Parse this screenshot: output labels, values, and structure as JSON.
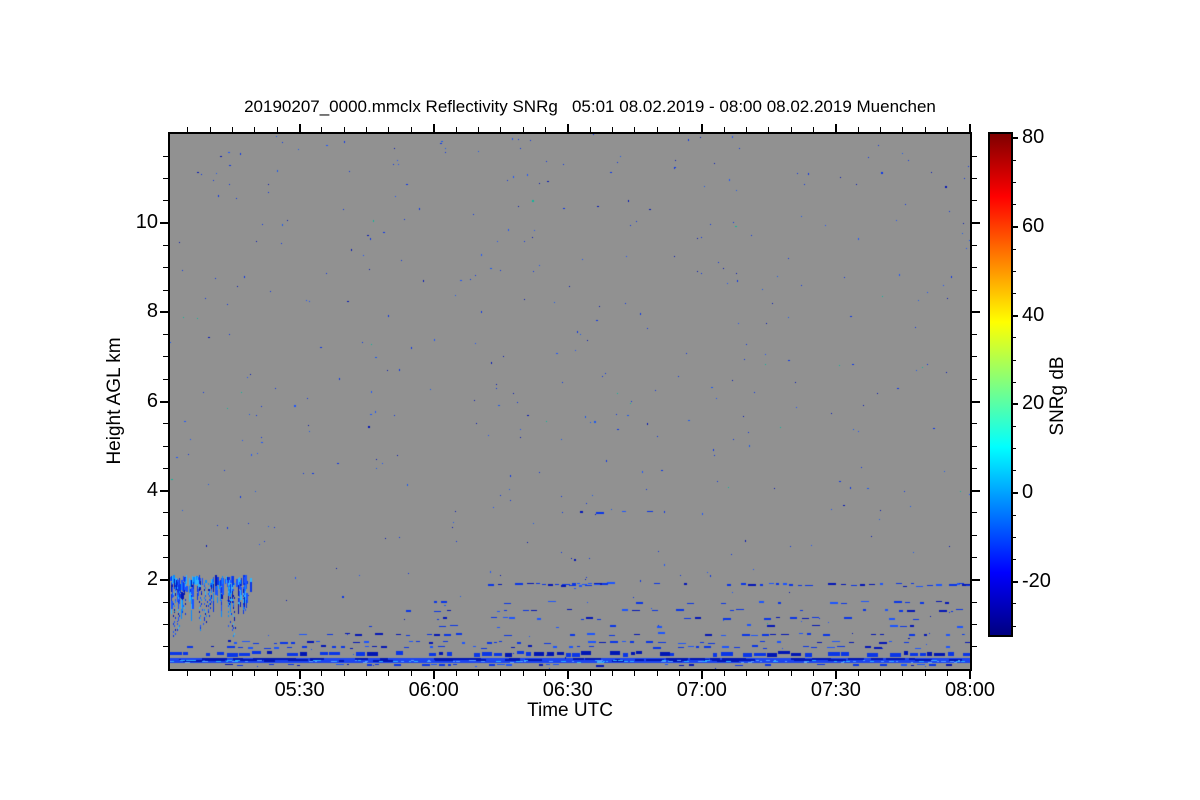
{
  "title": "20190207_0000.mmclx Reflectivity SNRg   05:01 08.02.2019 - 08:00 08.02.2019 Muenchen",
  "chart_data": {
    "type": "heatmap",
    "title": "20190207_0000.mmclx Reflectivity SNRg   05:01 08.02.2019 - 08:00 08.02.2019 Muenchen",
    "station": "Muenchen",
    "xlabel": "Time UTC",
    "ylabel": "Height AGL km",
    "x_range": [
      "05:01",
      "08:00"
    ],
    "x_major_ticks": [
      "05:30",
      "06:00",
      "06:30",
      "07:00",
      "07:30",
      "08:00"
    ],
    "x_minor_step_min": 5,
    "y_range_km": [
      0,
      12
    ],
    "y_major_ticks": [
      2,
      4,
      6,
      8,
      10
    ],
    "y_minor_step_km": 0.5,
    "grid": false,
    "legend": "colorbar-right",
    "colorbar": {
      "label": "SNRg dB",
      "ticks": [
        80,
        60,
        40,
        20,
        0,
        -20
      ],
      "minor_step_db": 5,
      "range_db": [
        -32,
        81
      ],
      "colormap": "jet",
      "gradient_stops": [
        "#000080",
        "#0000ff",
        "#00ffff",
        "#ffff00",
        "#ff0000",
        "#800000"
      ],
      "gradient_positions": [
        0,
        0.125,
        0.375,
        0.625,
        0.875,
        1
      ]
    },
    "palette": {
      "background_gray": "#919191",
      "frame_black": "#000000",
      "echo_blue_dark": "#0417b6",
      "echo_blue": "#0a36e8",
      "echo_blue_bright": "#1c55ff",
      "echo_cyan": "#2fb4ff",
      "echo_teal": "#12b49a",
      "band_solid_blue": "#1c45f0",
      "band_solid_dark": "#0016b4",
      "band_highlight": "#58a0ff"
    },
    "features": [
      {
        "name": "boundary-layer-cloud",
        "type": "cloud",
        "time": [
          "05:01",
          "05:19"
        ],
        "height_km": [
          0.68,
          2.06
        ],
        "snr_db": [
          -28,
          -5
        ]
      },
      {
        "name": "elevated-thin-layer-1p9km",
        "type": "dashed-layer",
        "time": [
          "06:04",
          "08:00"
        ],
        "height_km": [
          1.83,
          1.93
        ],
        "coverage": 0.5,
        "snr_db": -24
      },
      {
        "name": "elevated-layer-dense-mid",
        "type": "dashed-layer",
        "time": [
          "06:23",
          "06:39"
        ],
        "height_km": [
          1.84,
          1.93
        ],
        "coverage": 0.9,
        "snr_db": -22
      },
      {
        "name": "elevated-layer-dense-end",
        "type": "dashed-layer",
        "time": [
          "07:52",
          "08:00"
        ],
        "height_km": [
          1.84,
          1.93
        ],
        "coverage": 0.9,
        "snr_db": -22
      },
      {
        "name": "thin-layer-3p5km",
        "type": "dashed-layer",
        "time": [
          "06:25",
          "06:50"
        ],
        "height_km": [
          3.44,
          3.54
        ],
        "coverage": 0.1,
        "snr_db": -26
      },
      {
        "name": "bio-layer-1",
        "type": "dashed-layer",
        "time": [
          "05:56",
          "08:00"
        ],
        "height_km": [
          1.44,
          1.52
        ],
        "coverage": 0.22,
        "snr_db": -25
      },
      {
        "name": "bio-layer-2",
        "type": "dashed-layer",
        "time": [
          "05:54",
          "08:00"
        ],
        "height_km": [
          1.26,
          1.34
        ],
        "coverage": 0.28,
        "snr_db": -25
      },
      {
        "name": "bio-layer-3",
        "type": "dashed-layer",
        "time": [
          "05:50",
          "08:00"
        ],
        "height_km": [
          1.08,
          1.16
        ],
        "coverage": 0.33,
        "snr_db": -25
      },
      {
        "name": "bio-layer-4",
        "type": "dashed-layer",
        "time": [
          "05:44",
          "08:00"
        ],
        "height_km": [
          0.9,
          0.99
        ],
        "coverage": 0.38,
        "snr_db": -24
      },
      {
        "name": "bio-layer-5",
        "type": "dashed-layer",
        "time": [
          "05:30",
          "08:00"
        ],
        "height_km": [
          0.72,
          0.81
        ],
        "coverage": 0.42,
        "snr_db": -24
      },
      {
        "name": "bio-layer-6",
        "type": "dashed-layer",
        "time": [
          "05:14",
          "08:00"
        ],
        "height_km": [
          0.54,
          0.63
        ],
        "coverage": 0.5,
        "snr_db": -23
      },
      {
        "name": "bio-layer-7",
        "type": "dashed-layer",
        "time": [
          "05:05",
          "08:00"
        ],
        "height_km": [
          0.44,
          0.52
        ],
        "coverage": 0.45,
        "snr_db": -23
      },
      {
        "name": "clutter-dashed-band",
        "type": "band-dashed",
        "time": [
          "05:01",
          "08:00"
        ],
        "height_km": [
          0.28,
          0.39
        ],
        "coverage": 0.78,
        "snr_db": -20
      },
      {
        "name": "clutter-solid-band",
        "type": "band-solid",
        "time": [
          "05:01",
          "08:00"
        ],
        "height_km": [
          0.13,
          0.24
        ],
        "snr_db": -15
      },
      {
        "name": "clutter-sparse-row",
        "type": "dashed-layer",
        "time": [
          "05:01",
          "08:00"
        ],
        "height_km": [
          0.06,
          0.11
        ],
        "coverage": 0.4,
        "snr_db": -22
      },
      {
        "name": "isolated-teal-speck",
        "type": "dot",
        "time": [
          "06:22",
          "06:23"
        ],
        "height_km": [
          10.4,
          10.5
        ],
        "snr_db": 5
      },
      {
        "name": "noise-speckle",
        "type": "speckle",
        "time": [
          "05:01",
          "08:00"
        ],
        "height_km": [
          0,
          12
        ],
        "count": 430,
        "snr_db": -28
      }
    ]
  }
}
